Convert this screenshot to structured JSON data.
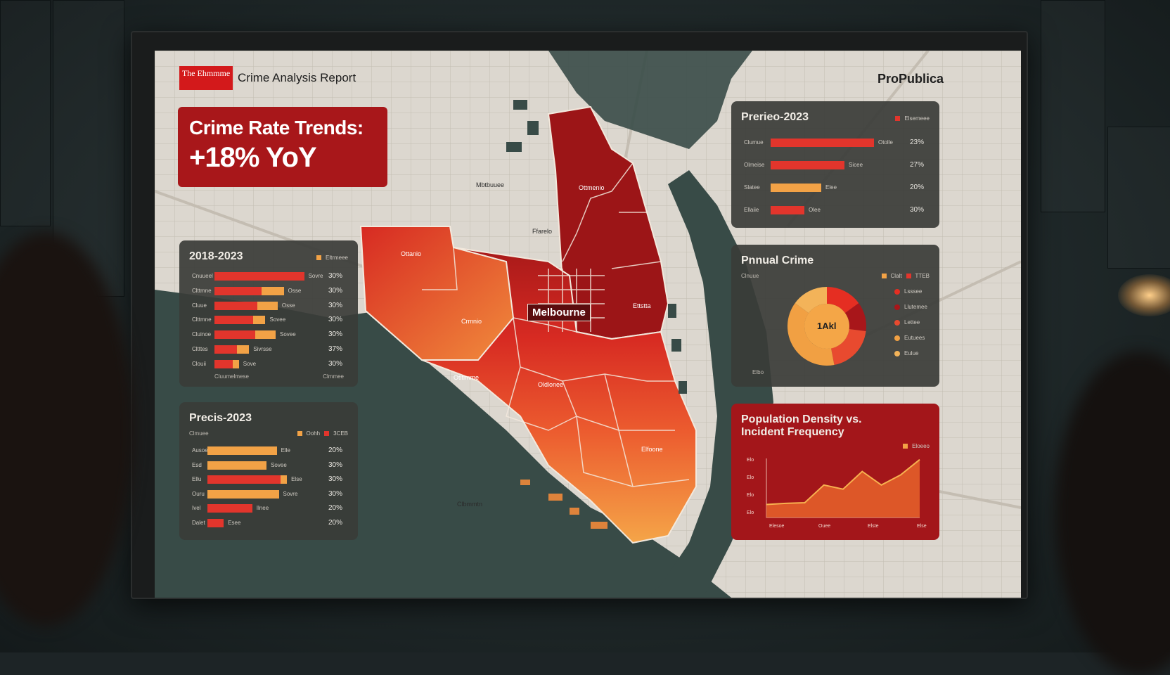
{
  "header": {
    "brand_box": "The Ehmmme",
    "report_title": "Crime Analysis Report",
    "publisher": "ProPublica"
  },
  "headline": {
    "line1": "Crime Rate Trends:",
    "line2": "+18% YoY"
  },
  "map": {
    "city_label": "Melbourne",
    "labels": [
      "Mbtbuuee",
      "Ffarelo",
      "Ottmenio",
      "Ottanio",
      "Ettstta",
      "Crmnio",
      "Otltimme",
      "Oldlonee",
      "Elfoone",
      "Clbmmtn"
    ]
  },
  "panel_left_top": {
    "title": "2018-2023",
    "legend": "Eltrmeee",
    "rows": [
      {
        "label": "Cnuueel",
        "v1": 0.44,
        "v2": 0.0,
        "small": "Sovre",
        "pct": "30%"
      },
      {
        "label": "Clttmne",
        "v1": 0.23,
        "v2": 0.11,
        "small": "Osse",
        "pct": "30%"
      },
      {
        "label": "Cluue",
        "v1": 0.21,
        "v2": 0.1,
        "small": "Osse",
        "pct": "30%"
      },
      {
        "label": "Clttmne",
        "v1": 0.19,
        "v2": 0.06,
        "small": "Sovee",
        "pct": "30%"
      },
      {
        "label": "Cluinoe",
        "v1": 0.2,
        "v2": 0.1,
        "small": "Sovee",
        "pct": "30%"
      },
      {
        "label": "Cltttes",
        "v1": 0.11,
        "v2": 0.06,
        "small": "Sivrsse",
        "pct": "37%"
      },
      {
        "label": "Clouii",
        "v1": 0.09,
        "v2": 0.03,
        "small": "Sove",
        "pct": "30%"
      }
    ],
    "foot_left": "Cluumelmese",
    "foot_right": "Clmmee"
  },
  "panel_left_bottom": {
    "title": "Precis-2023",
    "sub": "Clmuee",
    "legend_a": "Oohh",
    "legend_b": "3CEB",
    "rows": [
      {
        "label": "Ausoe",
        "v1": 0.0,
        "v2": 0.34,
        "small": "Elle",
        "pct": "20%"
      },
      {
        "label": "Esd",
        "v1": 0.0,
        "v2": 0.29,
        "small": "Sovee",
        "pct": "30%"
      },
      {
        "label": "Ellu",
        "v1": 0.36,
        "v2": 0.03,
        "small": "Else",
        "pct": "30%"
      },
      {
        "label": "Ouru",
        "v1": 0.0,
        "v2": 0.35,
        "small": "Sovre",
        "pct": "30%"
      },
      {
        "label": "Ivel",
        "v1": 0.22,
        "v2": 0.0,
        "small": "Ilnee",
        "pct": "20%"
      },
      {
        "label": "Dalet",
        "v1": 0.08,
        "v2": 0.0,
        "small": "Esee",
        "pct": "20%"
      }
    ]
  },
  "panel_right_top": {
    "title": "Prerieo-2023",
    "legend": "Elsemeee",
    "rows": [
      {
        "label": "Clumue",
        "v1": 0.49,
        "v2": 0.0,
        "small": "Otolle",
        "pct": "23%"
      },
      {
        "label": "Olmeise",
        "v1": 0.35,
        "v2": 0.0,
        "small": "Sicee",
        "pct": "27%"
      },
      {
        "label": "Slatee",
        "v1": 0.0,
        "v2": 0.24,
        "small": "Elee",
        "pct": "20%"
      },
      {
        "label": "Ellaiie",
        "v1": 0.16,
        "v2": 0.0,
        "small": "Olee",
        "pct": "30%"
      }
    ]
  },
  "panel_right_mid": {
    "title": "Pnnual Crime",
    "sub": "Clnuue",
    "legend_a": "Clalt",
    "legend_b": "TTEB",
    "center": "1Akl",
    "foot": "Elbo",
    "slices": [
      {
        "label": "Lsssee",
        "value": 0.15,
        "color": "#e52e22"
      },
      {
        "label": "Llutemee",
        "value": 0.12,
        "color": "#a8161a"
      },
      {
        "label": "Lettee",
        "value": 0.2,
        "color": "#e84a2f"
      },
      {
        "label": "Eutuees",
        "value": 0.38,
        "color": "#f1a043"
      },
      {
        "label": "Eulue",
        "value": 0.15,
        "color": "#f3b359"
      }
    ]
  },
  "panel_right_bottom": {
    "title_line1": "Population Density vs.",
    "title_line2": "Incident Frequency",
    "legend": "Eloeeo",
    "y_ticks": [
      "Elo",
      "Elo",
      "Elo",
      "Elo"
    ],
    "x_ticks": [
      "Elesoe",
      "Ouee",
      "Elste",
      "Elselee"
    ]
  },
  "chart_data": {
    "type": "area",
    "title": "Population Density vs. Incident Frequency",
    "x": [
      0,
      1,
      2,
      3,
      4,
      5,
      6,
      7,
      8
    ],
    "values": [
      0.22,
      0.24,
      0.25,
      0.55,
      0.48,
      0.78,
      0.55,
      0.72,
      0.98
    ],
    "color": "#e8632c"
  },
  "colors": {
    "red_dark": "#a8171a",
    "red": "#e2352c",
    "orange": "#f2a246",
    "water": "#384b47",
    "map_bg": "#dcd7cf"
  }
}
